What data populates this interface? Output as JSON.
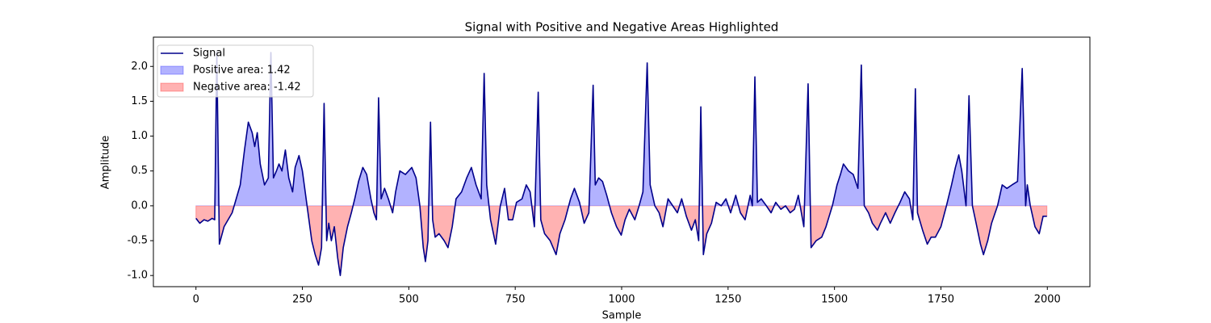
{
  "chart_data": {
    "type": "line",
    "title": "Signal with Positive and Negative Areas Highlighted",
    "x_label": "Sample",
    "y_label": "Amplitude",
    "x": [
      0,
      9,
      19,
      28,
      38,
      44,
      49,
      55,
      66,
      85,
      104,
      114,
      123,
      132,
      138,
      144,
      151,
      161,
      170,
      176,
      182,
      189,
      195,
      202,
      210,
      218,
      227,
      233,
      242,
      250,
      261,
      272,
      280,
      288,
      295,
      301,
      307,
      312,
      318,
      325,
      333,
      339,
      346,
      356,
      365,
      373,
      382,
      392,
      401,
      411,
      418,
      424,
      429,
      435,
      443,
      452,
      462,
      469,
      479,
      492,
      507,
      517,
      526,
      534,
      539,
      545,
      551,
      556,
      562,
      571,
      583,
      592,
      602,
      611,
      624,
      636,
      647,
      658,
      670,
      677,
      683,
      692,
      704,
      715,
      725,
      734,
      744,
      753,
      766,
      776,
      785,
      795,
      804,
      810,
      819,
      832,
      846,
      855,
      867,
      880,
      889,
      901,
      912,
      923,
      933,
      938,
      946,
      955,
      965,
      976,
      988,
      999,
      1008,
      1018,
      1031,
      1041,
      1050,
      1060,
      1067,
      1078,
      1088,
      1097,
      1109,
      1120,
      1131,
      1141,
      1152,
      1164,
      1173,
      1181,
      1186,
      1192,
      1200,
      1211,
      1222,
      1234,
      1245,
      1256,
      1268,
      1279,
      1290,
      1302,
      1307,
      1313,
      1319,
      1328,
      1340,
      1351,
      1362,
      1374,
      1385,
      1396,
      1406,
      1415,
      1428,
      1438,
      1445,
      1457,
      1470,
      1480,
      1495,
      1506,
      1514,
      1521,
      1533,
      1544,
      1555,
      1563,
      1570,
      1580,
      1589,
      1601,
      1608,
      1620,
      1631,
      1642,
      1654,
      1665,
      1676,
      1684,
      1690,
      1695,
      1707,
      1718,
      1727,
      1737,
      1750,
      1763,
      1775,
      1784,
      1792,
      1799,
      1809,
      1816,
      1824,
      1831,
      1843,
      1850,
      1860,
      1869,
      1883,
      1894,
      1905,
      1917,
      1930,
      1941,
      1949,
      1953,
      1960,
      1971,
      1981,
      1990,
      1999
    ],
    "series": [
      {
        "name": "Signal",
        "color": "#00008b",
        "values": [
          -0.18,
          -0.25,
          -0.2,
          -0.22,
          -0.18,
          -0.2,
          2.2,
          -0.55,
          -0.3,
          -0.1,
          0.3,
          0.8,
          1.2,
          1.05,
          0.85,
          1.05,
          0.6,
          0.3,
          0.4,
          2.2,
          0.4,
          0.5,
          0.6,
          0.5,
          0.8,
          0.4,
          0.2,
          0.55,
          0.72,
          0.5,
          0.0,
          -0.5,
          -0.7,
          -0.85,
          -0.6,
          1.47,
          -0.5,
          -0.25,
          -0.5,
          -0.3,
          -0.75,
          -1.0,
          -0.6,
          -0.3,
          -0.1,
          0.1,
          0.35,
          0.55,
          0.45,
          0.1,
          -0.1,
          -0.2,
          1.55,
          0.1,
          0.25,
          0.1,
          -0.1,
          0.2,
          0.5,
          0.45,
          0.55,
          0.4,
          0.0,
          -0.6,
          -0.8,
          -0.5,
          1.2,
          -0.2,
          -0.45,
          -0.4,
          -0.5,
          -0.6,
          -0.3,
          0.1,
          0.2,
          0.4,
          0.55,
          0.3,
          0.1,
          1.9,
          0.3,
          -0.2,
          -0.55,
          0.0,
          0.25,
          -0.2,
          -0.2,
          0.05,
          0.1,
          0.3,
          0.2,
          -0.3,
          1.63,
          -0.2,
          -0.4,
          -0.5,
          -0.7,
          -0.4,
          -0.2,
          0.1,
          0.25,
          0.05,
          -0.25,
          -0.1,
          1.73,
          0.3,
          0.4,
          0.35,
          0.15,
          -0.1,
          -0.3,
          -0.42,
          -0.2,
          -0.05,
          -0.2,
          0.0,
          0.2,
          2.05,
          0.3,
          0.0,
          -0.1,
          -0.3,
          0.1,
          0.0,
          -0.1,
          0.1,
          -0.15,
          -0.35,
          -0.2,
          -0.5,
          1.42,
          -0.7,
          -0.4,
          -0.25,
          0.05,
          0.0,
          0.1,
          -0.1,
          0.15,
          -0.1,
          -0.2,
          0.15,
          0.0,
          1.85,
          0.05,
          0.1,
          0.0,
          -0.1,
          0.05,
          -0.05,
          0.0,
          -0.1,
          -0.05,
          0.15,
          -0.3,
          1.75,
          -0.6,
          -0.5,
          -0.45,
          -0.3,
          0.0,
          0.3,
          0.45,
          0.6,
          0.5,
          0.45,
          0.25,
          2.02,
          0.0,
          -0.1,
          -0.25,
          -0.35,
          -0.25,
          -0.1,
          -0.25,
          -0.1,
          0.05,
          0.2,
          0.1,
          -0.2,
          1.68,
          -0.1,
          -0.35,
          -0.55,
          -0.45,
          -0.45,
          -0.3,
          0.0,
          0.3,
          0.55,
          0.73,
          0.5,
          0.0,
          1.58,
          0.0,
          -0.2,
          -0.55,
          -0.7,
          -0.5,
          -0.25,
          0.0,
          0.3,
          0.25,
          0.3,
          0.35,
          1.97,
          0.0,
          0.3,
          0.0,
          -0.3,
          -0.4,
          -0.15,
          -0.15
        ]
      }
    ],
    "areas": [
      {
        "name": "Positive area: 1.42",
        "color": "#0000ff",
        "side": "positive"
      },
      {
        "name": "Negative area: -1.42",
        "color": "#ff0000",
        "side": "negative"
      }
    ],
    "xlim": [
      -100,
      2100
    ],
    "xticks": [
      0,
      250,
      500,
      750,
      1000,
      1250,
      1500,
      1750,
      2000
    ],
    "ylim": [
      -1.16,
      2.42
    ],
    "yticks": [
      {
        "value": -1,
        "label": "-1.0"
      },
      {
        "value": -0.5,
        "label": "-0.5"
      },
      {
        "value": 0,
        "label": "0.0"
      },
      {
        "value": 0.5,
        "label": "0.5"
      },
      {
        "value": 1,
        "label": "1.0"
      },
      {
        "value": 1.5,
        "label": "1.5"
      },
      {
        "value": 2,
        "label": "2.0"
      }
    ],
    "legend": "upper left"
  }
}
